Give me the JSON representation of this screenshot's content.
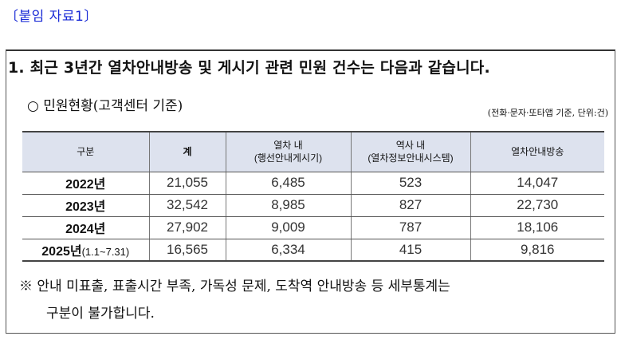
{
  "attachment_label": "〔붙임 자료1〕",
  "heading": "1. 최근 3년간 열차안내방송 및 게시기 관련 민원 건수는 다음과 같습니다.",
  "subheading": "○ 민원현황(고객센터 기준)",
  "unit_note": "(전화·문자·또타앱 기준, 단위:건)",
  "table": {
    "headers": [
      {
        "line1": "구분",
        "line2": ""
      },
      {
        "line1": "계",
        "line2": ""
      },
      {
        "line1": "열차 내",
        "line2": "(행선안내게시기)"
      },
      {
        "line1": "역사 내",
        "line2": "(열차정보안내시스템)"
      },
      {
        "line1": "열차안내방송",
        "line2": ""
      }
    ],
    "rows": [
      {
        "year": "2022년",
        "range": "",
        "total": "21,055",
        "train": "6,485",
        "station": "523",
        "broadcast": "14,047"
      },
      {
        "year": "2023년",
        "range": "",
        "total": "32,542",
        "train": "8,985",
        "station": "827",
        "broadcast": "22,730"
      },
      {
        "year": "2024년",
        "range": "",
        "total": "27,902",
        "train": "9,009",
        "station": "787",
        "broadcast": "18,106"
      },
      {
        "year": "2025년",
        "range": "(1.1~7.31)",
        "total": "16,565",
        "train": "6,334",
        "station": "415",
        "broadcast": "9,816"
      }
    ]
  },
  "note_line1": "※ 안내 미표출, 표출시간 부족, 가독성 문제, 도착역 안내방송 등 세부통계는",
  "note_line2": "구분이 불가합니다.",
  "colors": {
    "attachment": "#1a2bd6",
    "table_header_bg": "#dde2ee"
  }
}
